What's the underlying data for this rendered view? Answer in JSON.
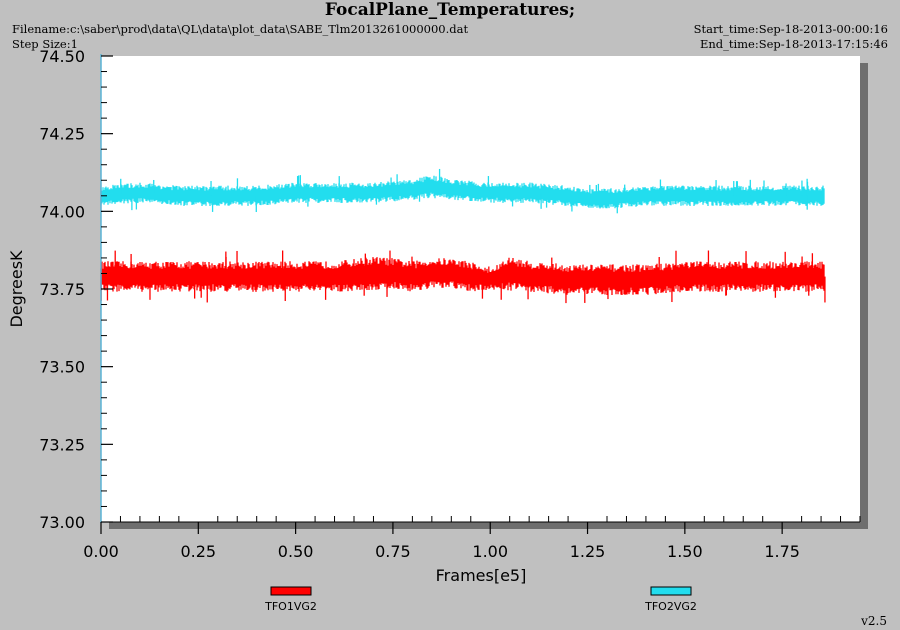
{
  "header": {
    "title": "FocalPlane_Temperatures;",
    "filename": "Filename:c:\\saber\\prod\\data\\QL\\data\\plot_data\\SABE_Tlm2013261000000.dat",
    "step_size": "Step Size:1",
    "start_time": "Start_time:Sep-18-2013-00:00:16",
    "end_time": "End_time:Sep-18-2013-17:15:46"
  },
  "footer": {
    "version": "v2.5"
  },
  "colors": {
    "background": "#c0c0c0",
    "plot_background": "#ffffff",
    "shadow": "#6e6e6e",
    "tfo1": "#ff0000",
    "tfo2": "#22ddee"
  },
  "chart_data": {
    "type": "line",
    "title": "FocalPlane_Temperatures;",
    "xlabel": "Frames[e5]",
    "ylabel": "DegreesK",
    "xlim": [
      0.0,
      1.95
    ],
    "ylim": [
      73.0,
      74.5
    ],
    "xticks": [
      "0.00",
      "0.25",
      "0.50",
      "0.75",
      "1.00",
      "1.25",
      "1.50",
      "1.75"
    ],
    "yticks": [
      "73.00",
      "73.25",
      "73.50",
      "73.75",
      "74.00",
      "74.25",
      "74.50"
    ],
    "legend": "bottom",
    "grid": false,
    "series": [
      {
        "name": "TFO1VG2",
        "color": "#ff0000",
        "x": [
          0.0,
          0.1,
          0.2,
          0.3,
          0.4,
          0.5,
          0.6,
          0.7,
          0.75,
          0.8,
          0.85,
          0.9,
          0.95,
          1.0,
          1.05,
          1.1,
          1.2,
          1.3,
          1.4,
          1.5,
          1.6,
          1.7,
          1.8,
          1.86
        ],
        "y": [
          73.79,
          73.79,
          73.79,
          73.79,
          73.79,
          73.79,
          73.79,
          73.8,
          73.8,
          73.79,
          73.8,
          73.8,
          73.79,
          73.78,
          73.8,
          73.79,
          73.78,
          73.78,
          73.78,
          73.79,
          73.79,
          73.79,
          73.79,
          73.79
        ],
        "band": [
          0.045,
          0.045,
          0.045,
          0.045,
          0.045,
          0.045,
          0.045,
          0.05,
          0.045,
          0.045,
          0.045,
          0.045,
          0.045,
          0.03,
          0.05,
          0.045,
          0.045,
          0.045,
          0.045,
          0.045,
          0.045,
          0.045,
          0.045,
          0.045
        ]
      },
      {
        "name": "TFO2VG2",
        "color": "#22ddee",
        "x": [
          0.0,
          0.1,
          0.2,
          0.3,
          0.4,
          0.5,
          0.6,
          0.7,
          0.8,
          0.85,
          0.9,
          1.0,
          1.1,
          1.2,
          1.25,
          1.3,
          1.4,
          1.5,
          1.6,
          1.7,
          1.8,
          1.86
        ],
        "y": [
          74.05,
          74.06,
          74.05,
          74.05,
          74.05,
          74.06,
          74.06,
          74.06,
          74.07,
          74.08,
          74.07,
          74.06,
          74.06,
          74.05,
          74.04,
          74.04,
          74.05,
          74.05,
          74.05,
          74.05,
          74.05,
          74.05
        ],
        "band": [
          0.03,
          0.03,
          0.03,
          0.03,
          0.03,
          0.03,
          0.03,
          0.03,
          0.03,
          0.035,
          0.03,
          0.03,
          0.03,
          0.03,
          0.03,
          0.03,
          0.03,
          0.03,
          0.03,
          0.03,
          0.03,
          0.03
        ]
      }
    ]
  }
}
